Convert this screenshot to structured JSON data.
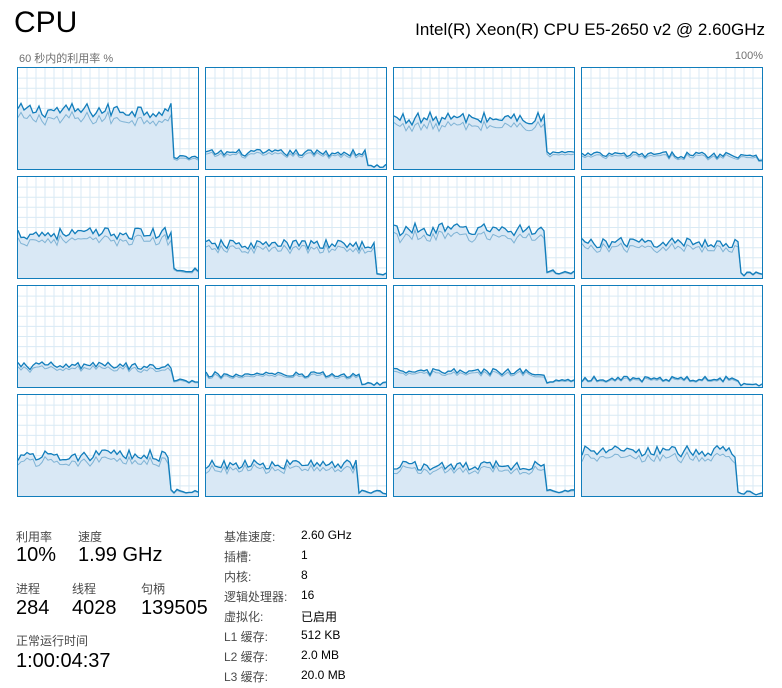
{
  "header": {
    "title": "CPU",
    "cpu_name": "Intel(R) Xeon(R) CPU E5-2650 v2 @ 2.60GHz",
    "axis_caption": "60 秒内的利用率 %",
    "axis_max": "100%"
  },
  "colors": {
    "line": "#117dbb",
    "fill": "#d9e8f5",
    "grid": "#d9eaf4",
    "kernel_line": "#7fb3d5"
  },
  "chart_data": {
    "type": "area",
    "title": "",
    "ylabel": "60 秒内的利用率 %",
    "ylim": [
      0,
      100
    ],
    "window_seconds": 60,
    "cores": [
      {
        "level": 58,
        "dip": 0.86,
        "tail": 12
      },
      {
        "level": 16,
        "dip": 0.9,
        "tail": 3
      },
      {
        "level": 50,
        "dip": 0.85,
        "tail": 16
      },
      {
        "level": 14,
        "dip": 0.98,
        "tail": 9
      },
      {
        "level": 44,
        "dip": 0.86,
        "tail": 8
      },
      {
        "level": 33,
        "dip": 0.94,
        "tail": 3
      },
      {
        "level": 48,
        "dip": 0.85,
        "tail": 6
      },
      {
        "level": 35,
        "dip": 0.87,
        "tail": 4
      },
      {
        "level": 21,
        "dip": 0.86,
        "tail": 6
      },
      {
        "level": 12,
        "dip": 0.86,
        "tail": 3
      },
      {
        "level": 15,
        "dip": 0.85,
        "tail": 6
      },
      {
        "level": 8,
        "dip": 0.88,
        "tail": 3
      },
      {
        "level": 40,
        "dip": 0.85,
        "tail": 5
      },
      {
        "level": 31,
        "dip": 0.85,
        "tail": 4
      },
      {
        "level": 30,
        "dip": 0.85,
        "tail": 5
      },
      {
        "level": 44,
        "dip": 0.86,
        "tail": 3
      }
    ]
  },
  "stats": {
    "utilization_label": "利用率",
    "utilization_value": "10%",
    "speed_label": "速度",
    "speed_value": "1.99 GHz",
    "processes_label": "进程",
    "processes_value": "284",
    "threads_label": "线程",
    "threads_value": "4028",
    "handles_label": "句柄",
    "handles_value": "139505",
    "uptime_label": "正常运行时间",
    "uptime_value": "1:00:04:37"
  },
  "specs": [
    {
      "label": "基准速度:",
      "value": "2.60 GHz"
    },
    {
      "label": "插槽:",
      "value": "1"
    },
    {
      "label": "内核:",
      "value": "8"
    },
    {
      "label": "逻辑处理器:",
      "value": "16"
    },
    {
      "label": "虚拟化:",
      "value": "已启用"
    },
    {
      "label": "L1 缓存:",
      "value": "512 KB"
    },
    {
      "label": "L2 缓存:",
      "value": "2.0 MB"
    },
    {
      "label": "L3 缓存:",
      "value": "20.0 MB"
    }
  ]
}
